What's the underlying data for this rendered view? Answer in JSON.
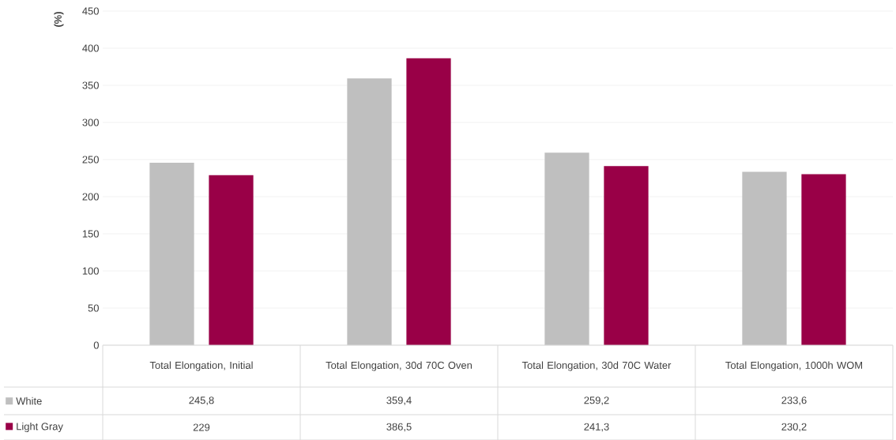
{
  "chart_data": {
    "type": "bar",
    "ylabel": "(%)",
    "categories": [
      "Total Elongation, Initial",
      "Total Elongation, 30d 70C Oven",
      "Total Elongation, 30d 70C Water",
      "Total Elongation, 1000h WOM"
    ],
    "series": [
      {
        "name": "White",
        "color": "#bfbfbf",
        "values": [
          245.8,
          359.4,
          259.2,
          233.6
        ],
        "value_labels": [
          "245,8",
          "359,4",
          "259,2",
          "233,6"
        ]
      },
      {
        "name": "Light Gray",
        "color": "#990047",
        "values": [
          229,
          386.5,
          241.3,
          230.2
        ],
        "value_labels": [
          "229",
          "386,5",
          "241,3",
          "230,2"
        ]
      }
    ],
    "ylim": [
      0,
      450
    ],
    "yticks": [
      0,
      50,
      100,
      150,
      200,
      250,
      300,
      350,
      400,
      450
    ],
    "grid": "y",
    "legend": "bottom left"
  }
}
